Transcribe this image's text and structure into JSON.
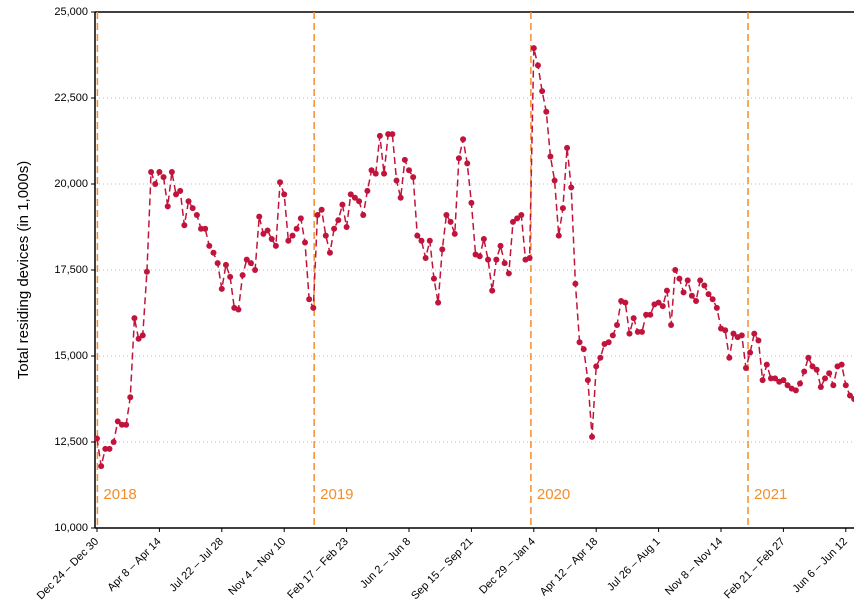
{
  "chart_data": {
    "type": "line",
    "y_label": "Total residing devices (in 1,000s)",
    "categories": [
      "Dec 24 – Dec 30",
      null,
      null,
      null,
      null,
      null,
      null,
      null,
      null,
      null,
      null,
      null,
      null,
      null,
      null,
      "Apr 8 – Apr 14",
      null,
      null,
      null,
      null,
      null,
      null,
      null,
      null,
      null,
      null,
      null,
      null,
      null,
      null,
      "Jul 22 – Jul 28",
      null,
      null,
      null,
      null,
      null,
      null,
      null,
      null,
      null,
      null,
      null,
      null,
      null,
      null,
      "Nov 4 – Nov 10",
      null,
      null,
      null,
      null,
      null,
      null,
      null,
      null,
      null,
      null,
      null,
      null,
      null,
      null,
      "Feb 17 – Feb 23",
      null,
      null,
      null,
      null,
      null,
      null,
      null,
      null,
      null,
      null,
      null,
      null,
      null,
      null,
      "Jun 2 – Jun 8",
      null,
      null,
      null,
      null,
      null,
      null,
      null,
      null,
      null,
      null,
      null,
      null,
      null,
      null,
      "Sep 15 – Sep 21",
      null,
      null,
      null,
      null,
      null,
      null,
      null,
      null,
      null,
      null,
      null,
      null,
      null,
      null,
      "Dec 29 – Jan 4",
      null,
      null,
      null,
      null,
      null,
      null,
      null,
      null,
      null,
      null,
      null,
      null,
      null,
      null,
      "Apr 12 – Apr 18",
      null,
      null,
      null,
      null,
      null,
      null,
      null,
      null,
      null,
      null,
      null,
      null,
      null,
      null,
      "Jul 26 – Aug 1",
      null,
      null,
      null,
      null,
      null,
      null,
      null,
      null,
      null,
      null,
      null,
      null,
      null,
      null,
      "Nov 8 – Nov 14",
      null,
      null,
      null,
      null,
      null,
      null,
      null,
      null,
      null,
      null,
      null,
      null,
      null,
      null,
      "Feb 21 – Feb 27",
      null,
      null,
      null,
      null,
      null,
      null,
      null,
      null,
      null,
      null,
      null,
      null,
      null,
      null,
      "Jun 6 – Jun 12",
      null,
      null
    ],
    "series": [
      {
        "color": "#c0143c",
        "values": [
          12600,
          11800,
          12300,
          12300,
          12500,
          13100,
          13000,
          13000,
          13800,
          16100,
          15500,
          15600,
          17450,
          20350,
          20000,
          20350,
          20200,
          19350,
          20350,
          19700,
          19800,
          18800,
          19500,
          19300,
          19100,
          18700,
          18700,
          18200,
          18000,
          17700,
          16950,
          17650,
          17300,
          16400,
          16350,
          17350,
          17800,
          17700,
          17500,
          19050,
          18550,
          18650,
          18400,
          18200,
          20050,
          19700,
          18350,
          18500,
          18700,
          19000,
          18300,
          16650,
          16400,
          19100,
          19250,
          18500,
          18000,
          18700,
          18950,
          19400,
          18750,
          19700,
          19600,
          19500,
          19100,
          19800,
          20400,
          20300,
          21400,
          20300,
          21450,
          21450,
          20100,
          19600,
          20700,
          20400,
          20200,
          18500,
          18350,
          17850,
          18350,
          17250,
          16550,
          18100,
          19100,
          18900,
          18550,
          20750,
          21300,
          20600,
          19450,
          17950,
          17900,
          18400,
          17800,
          16900,
          17800,
          18200,
          17700,
          17400,
          18900,
          19000,
          19100,
          17800,
          17850,
          23950,
          23450,
          22700,
          22100,
          20800,
          20100,
          18500,
          19300,
          21050,
          19900,
          17100,
          15400,
          15200,
          14300,
          12650,
          14700,
          14950,
          15350,
          15400,
          15600,
          15900,
          16600,
          16550,
          15650,
          16100,
          15700,
          15700,
          16200,
          16200,
          16500,
          16550,
          16450,
          16900,
          15900,
          17500,
          17250,
          16850,
          17200,
          16750,
          16600,
          17200,
          17050,
          16800,
          16650,
          16400,
          15800,
          15750,
          14950,
          15650,
          15550,
          15600,
          14650,
          15100,
          15650,
          15450,
          14300,
          14750,
          14350,
          14350,
          14250,
          14300,
          14150,
          14050,
          14000,
          14200,
          14550,
          14950,
          14700,
          14600,
          14100,
          14350,
          14500,
          14150,
          14700,
          14750,
          14150,
          13850,
          13750
        ]
      }
    ],
    "ylim": [
      10000,
      25000
    ],
    "yticks": [
      {
        "value": 10000,
        "label": "10,000"
      },
      {
        "value": 12500,
        "label": "12,500"
      },
      {
        "value": 15000,
        "label": "15,000"
      },
      {
        "value": 17500,
        "label": "17,500"
      },
      {
        "value": 20000,
        "label": "20,000"
      },
      {
        "value": 22500,
        "label": "22,500"
      },
      {
        "value": 25000,
        "label": "25,000"
      }
    ],
    "grid": true,
    "marker_color": "#f28e2b",
    "year_markers": [
      {
        "label": "2018",
        "x": 0.1
      },
      {
        "label": "2019",
        "x": 52.2
      },
      {
        "label": "2020",
        "x": 104.3
      },
      {
        "label": "2021",
        "x": 156.5
      }
    ]
  }
}
